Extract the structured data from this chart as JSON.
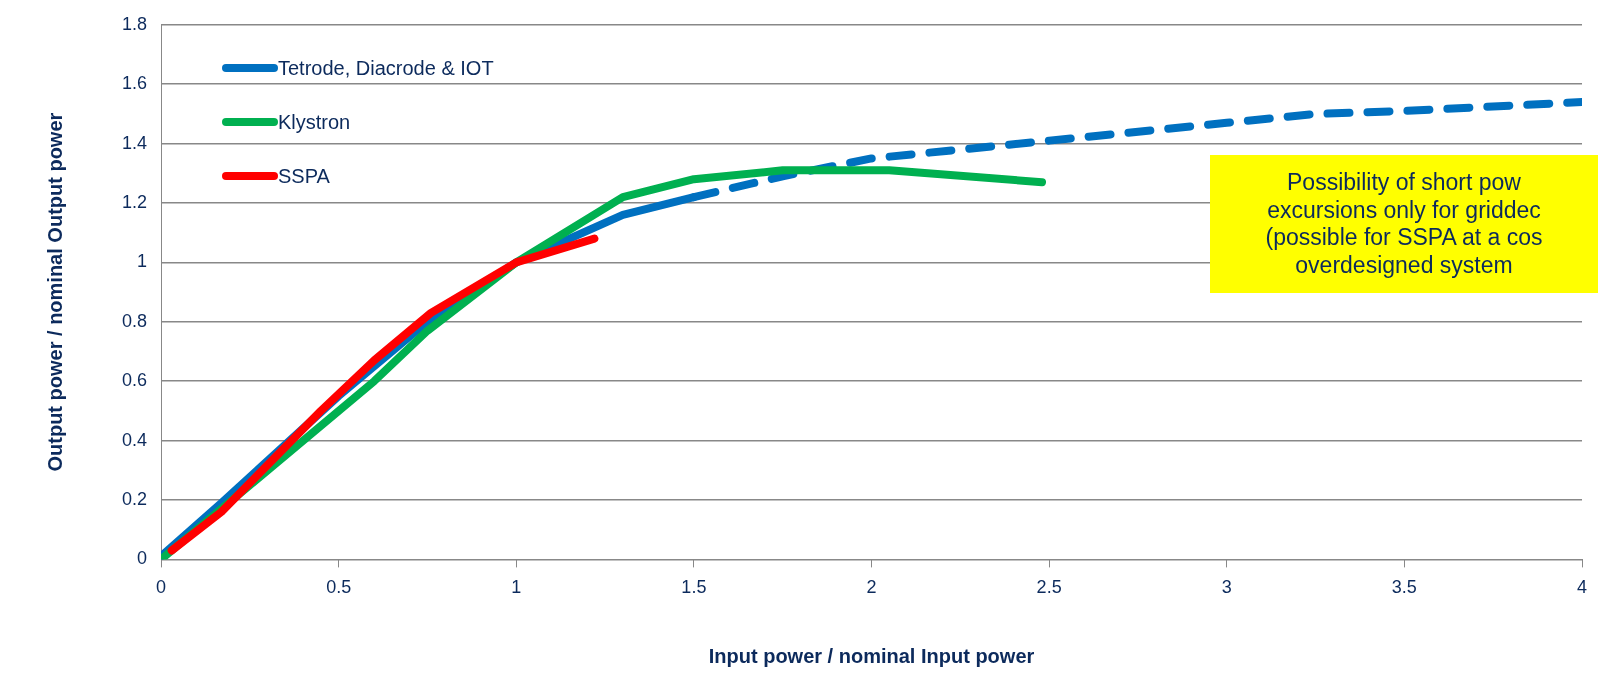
{
  "chart_data": {
    "type": "line",
    "xlabel": "Input power / nominal Input power",
    "ylabel": "Output power / nominal Output power",
    "xlim": [
      0,
      4
    ],
    "xticks": [
      0,
      0.5,
      1,
      1.5,
      2,
      2.5,
      3,
      3.5,
      4
    ],
    "ylim": [
      0,
      1.8
    ],
    "yticks": [
      0,
      0.2,
      0.4,
      0.6,
      0.8,
      1,
      1.2,
      1.4,
      1.6,
      1.8
    ],
    "grid": "y",
    "legend": "top left",
    "marker": "none",
    "series": [
      {
        "name": "Tetrode, Diacrode & IOT",
        "color": "#0070c0",
        "line_style": "solid",
        "x": [
          0,
          0.17,
          0.5,
          0.75,
          1,
          1.3,
          1.5
        ],
        "values": [
          0.01,
          0.19,
          0.55,
          0.8,
          1.0,
          1.16,
          1.22
        ]
      },
      {
        "color": "#0070c0",
        "line_style": "dashed",
        "x": [
          1.5,
          1.75,
          2,
          2.5,
          3,
          3.25,
          3.5,
          4
        ],
        "values": [
          1.22,
          1.29,
          1.35,
          1.41,
          1.47,
          1.5,
          1.51,
          1.54
        ]
      },
      {
        "name": "Klystron",
        "color": "#00b050",
        "line_style": "solid",
        "x": [
          0,
          0.6,
          0.75,
          1,
          1.3,
          1.5,
          1.75,
          2.05,
          2.48
        ],
        "values": [
          0,
          0.6,
          0.77,
          1.0,
          1.22,
          1.28,
          1.31,
          1.31,
          1.27
        ]
      },
      {
        "name": "SSPA",
        "color": "#ff0000",
        "line_style": "solid",
        "x": [
          0.03,
          0.17,
          0.45,
          0.6,
          0.76,
          1,
          1.22
        ],
        "values": [
          0.03,
          0.16,
          0.5,
          0.67,
          0.83,
          1.0,
          1.08
        ]
      }
    ],
    "annotations": [
      "Possibility of short pow\nexcursions only for griddec\n(possible for SSPA at a cos\noverdesigned system"
    ]
  }
}
